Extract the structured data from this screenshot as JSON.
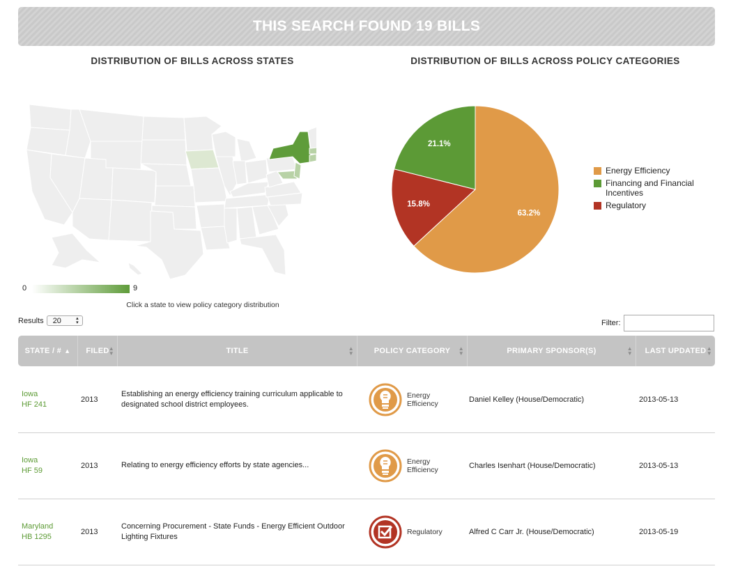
{
  "header": {
    "banner": "THIS SEARCH FOUND 19 BILLS"
  },
  "map": {
    "title": "DISTRIBUTION OF BILLS ACROSS STATES",
    "scale_min": "0",
    "scale_max": "9",
    "hint": "Click a state to view policy category distribution",
    "highlight_color": "#5f9c3a"
  },
  "pie": {
    "title": "DISTRIBUTION OF BILLS ACROSS POLICY CATEGORIES"
  },
  "chart_data": {
    "type": "pie",
    "slices": [
      {
        "label": "Energy Efficiency",
        "value": 63.2,
        "display": "63.2%",
        "color": "#e09a48"
      },
      {
        "label": "Regulatory",
        "value": 15.8,
        "display": "15.8%",
        "color": "#b23424"
      },
      {
        "label": "Financing and Financial Incentives",
        "value": 21.1,
        "display": "21.1%",
        "color": "#5c9a36"
      }
    ],
    "legend": [
      {
        "label": "Energy Efficiency",
        "color": "#e09a48"
      },
      {
        "label": "Financing and Financial Incentives",
        "color": "#5c9a36"
      },
      {
        "label": "Regulatory",
        "color": "#b23424"
      }
    ],
    "legend_position": "right"
  },
  "controls": {
    "results_label": "Results",
    "results_value": "20",
    "filter_label": "Filter:",
    "filter_value": ""
  },
  "table": {
    "columns": [
      "STATE / #",
      "FILED",
      "TITLE",
      "POLICY CATEGORY",
      "PRIMARY SPONSOR(S)",
      "LAST UPDATED"
    ],
    "rows": [
      {
        "state": "Iowa",
        "bill": "HF 241",
        "filed": "2013",
        "title": "Establishing an energy efficiency training curriculum applicable to designated school district employees.",
        "category": "Energy Efficiency",
        "category_icon": "lightbulb-icon",
        "sponsor": "Daniel Kelley (House/Democratic)",
        "updated": "2013-05-13"
      },
      {
        "state": "Iowa",
        "bill": "HF 59",
        "filed": "2013",
        "title": "Relating to energy efficiency efforts by state agencies...",
        "category": "Energy Efficiency",
        "category_icon": "lightbulb-icon",
        "sponsor": "Charles Isenhart (House/Democratic)",
        "updated": "2013-05-13"
      },
      {
        "state": "Maryland",
        "bill": "HB 1295",
        "filed": "2013",
        "title": "Concerning Procurement - State Funds - Energy Efficient Outdoor Lighting Fixtures",
        "category": "Regulatory",
        "category_icon": "checkbox-icon",
        "sponsor": "Alfred C Carr Jr. (House/Democratic)",
        "updated": "2013-05-19"
      }
    ]
  }
}
